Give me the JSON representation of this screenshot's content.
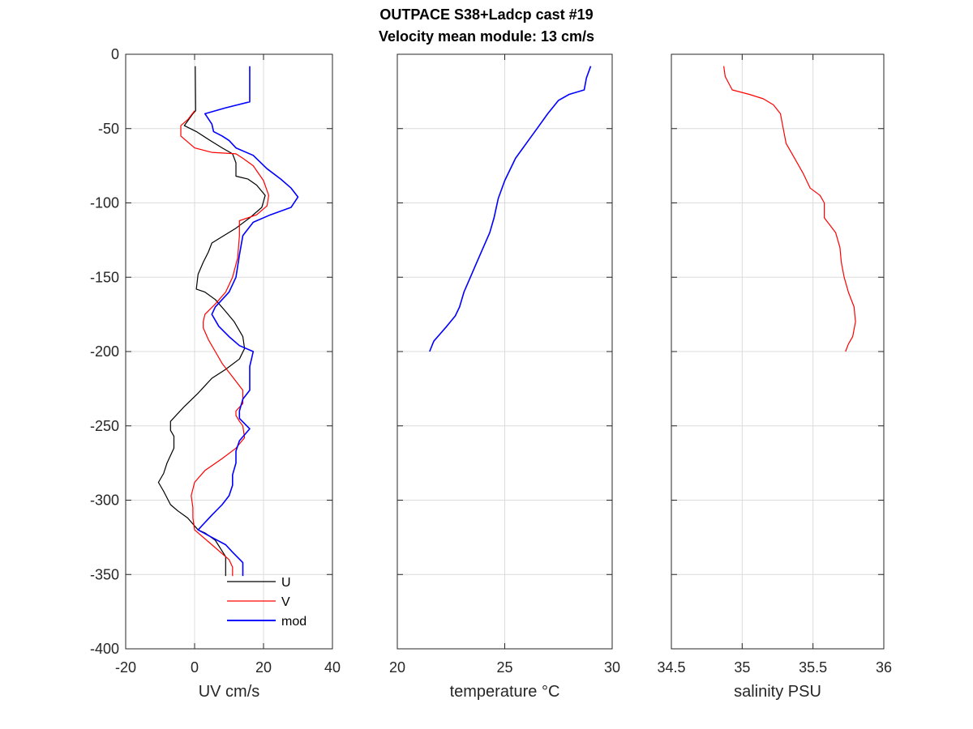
{
  "figure": {
    "title_line1": "OUTPACE S38+Ladcp cast #19",
    "title_line2": "Velocity mean module:  13 cm/s"
  },
  "chart_data": [
    {
      "type": "line",
      "xlabel": "UV cm/s",
      "ylabel": "",
      "xlim": [
        -20,
        40
      ],
      "ylim": [
        -400,
        0
      ],
      "xticks": [
        -20,
        0,
        20,
        40
      ],
      "yticks": [
        -400,
        -350,
        -300,
        -250,
        -200,
        -150,
        -100,
        -50,
        0
      ],
      "grid": true,
      "legend": "bottom-center",
      "series": [
        {
          "name": "U",
          "color": "#000000",
          "points": [
            [
              0.2,
              -8
            ],
            [
              0.3,
              -38
            ],
            [
              -0.5,
              -40
            ],
            [
              -3,
              -48
            ],
            [
              0.5,
              -52
            ],
            [
              4.5,
              -58
            ],
            [
              8,
              -63
            ],
            [
              11,
              -67
            ],
            [
              12,
              -73
            ],
            [
              12,
              -82
            ],
            [
              15.5,
              -84
            ],
            [
              18,
              -88
            ],
            [
              20.5,
              -95
            ],
            [
              19.5,
              -103
            ],
            [
              16,
              -110
            ],
            [
              12,
              -117
            ],
            [
              8.5,
              -122
            ],
            [
              5,
              -127
            ],
            [
              4,
              -133
            ],
            [
              2.5,
              -140
            ],
            [
              1,
              -148
            ],
            [
              0.5,
              -158
            ],
            [
              3,
              -160
            ],
            [
              6,
              -165
            ],
            [
              9,
              -173
            ],
            [
              11.5,
              -180
            ],
            [
              14,
              -190
            ],
            [
              14.5,
              -198
            ],
            [
              13,
              -205
            ],
            [
              9,
              -212
            ],
            [
              5,
              -218
            ],
            [
              1,
              -228
            ],
            [
              -3,
              -237
            ],
            [
              -7,
              -247
            ],
            [
              -7,
              -253
            ],
            [
              -6,
              -257
            ],
            [
              -6,
              -265
            ],
            [
              -8,
              -275
            ],
            [
              -9,
              -282
            ],
            [
              -10.5,
              -288
            ],
            [
              -9,
              -294
            ],
            [
              -7,
              -303
            ],
            [
              -5,
              -307
            ],
            [
              -2,
              -312
            ],
            [
              1,
              -320
            ],
            [
              3,
              -322
            ],
            [
              6,
              -327
            ],
            [
              9,
              -338
            ],
            [
              9,
              -351
            ]
          ]
        },
        {
          "name": "V",
          "color": "#ff0000",
          "points": [
            [
              0,
              -38
            ],
            [
              -2,
              -44
            ],
            [
              -4,
              -48
            ],
            [
              -4,
              -55
            ],
            [
              0,
              -63
            ],
            [
              5,
              -66
            ],
            [
              12,
              -67
            ],
            [
              14,
              -70
            ],
            [
              17,
              -75
            ],
            [
              20,
              -85
            ],
            [
              21.5,
              -95
            ],
            [
              21,
              -102
            ],
            [
              18,
              -108
            ],
            [
              13,
              -112
            ],
            [
              13,
              -122
            ],
            [
              12.5,
              -137
            ],
            [
              11,
              -150
            ],
            [
              9,
              -160
            ],
            [
              6,
              -168
            ],
            [
              3,
              -175
            ],
            [
              2.5,
              -180
            ],
            [
              2.5,
              -184
            ],
            [
              4,
              -192
            ],
            [
              6,
              -200
            ],
            [
              8,
              -208
            ],
            [
              11,
              -217
            ],
            [
              14,
              -226
            ],
            [
              14,
              -235
            ],
            [
              12,
              -240
            ],
            [
              12,
              -243
            ],
            [
              13,
              -247
            ],
            [
              14,
              -250
            ],
            [
              14.5,
              -258
            ],
            [
              12,
              -265
            ],
            [
              8,
              -272
            ],
            [
              3,
              -280
            ],
            [
              0,
              -288
            ],
            [
              -1,
              -297
            ],
            [
              -0.5,
              -305
            ],
            [
              -0.5,
              -312
            ],
            [
              0,
              -320
            ],
            [
              5,
              -330
            ],
            [
              8,
              -336
            ],
            [
              10,
              -340
            ],
            [
              11,
              -345
            ],
            [
              11,
              -351
            ]
          ]
        },
        {
          "name": "mod",
          "color": "#0000ff",
          "points": [
            [
              16,
              -8
            ],
            [
              16,
              -32
            ],
            [
              9,
              -36
            ],
            [
              3,
              -40
            ],
            [
              5,
              -47
            ],
            [
              5.5,
              -52
            ],
            [
              8,
              -55
            ],
            [
              10,
              -58
            ],
            [
              12,
              -63
            ],
            [
              17,
              -68
            ],
            [
              21,
              -77
            ],
            [
              25,
              -84
            ],
            [
              28,
              -90
            ],
            [
              30,
              -96
            ],
            [
              28,
              -103
            ],
            [
              22,
              -108
            ],
            [
              17,
              -113
            ],
            [
              14,
              -122
            ],
            [
              13,
              -135
            ],
            [
              12,
              -150
            ],
            [
              10,
              -160
            ],
            [
              8,
              -165
            ],
            [
              6,
              -170
            ],
            [
              5,
              -175
            ],
            [
              7,
              -183
            ],
            [
              10,
              -190
            ],
            [
              13,
              -196
            ],
            [
              17,
              -200
            ],
            [
              16,
              -210
            ],
            [
              16,
              -217
            ],
            [
              16,
              -222
            ],
            [
              16,
              -226
            ],
            [
              14,
              -232
            ],
            [
              13,
              -240
            ],
            [
              13,
              -245
            ],
            [
              16,
              -252
            ],
            [
              13,
              -260
            ],
            [
              12,
              -267
            ],
            [
              12,
              -275
            ],
            [
              11,
              -283
            ],
            [
              11,
              -290
            ],
            [
              10,
              -297
            ],
            [
              8,
              -303
            ],
            [
              5,
              -310
            ],
            [
              3,
              -315
            ],
            [
              1,
              -320
            ],
            [
              5,
              -325
            ],
            [
              9,
              -330
            ],
            [
              11,
              -335
            ],
            [
              14,
              -342
            ],
            [
              14,
              -351
            ]
          ]
        }
      ]
    },
    {
      "type": "line",
      "xlabel": "temperature °C",
      "ylabel": "",
      "xlim": [
        20,
        30
      ],
      "ylim": [
        -400,
        0
      ],
      "xticks": [
        20,
        25,
        30
      ],
      "grid": true,
      "series": [
        {
          "color": "#0000ff",
          "points": [
            [
              29,
              -8
            ],
            [
              28.8,
              -16
            ],
            [
              28.7,
              -24
            ],
            [
              28,
              -27
            ],
            [
              27.5,
              -31
            ],
            [
              27,
              -40
            ],
            [
              26.5,
              -50
            ],
            [
              26.2,
              -56
            ],
            [
              25.5,
              -70
            ],
            [
              25.0,
              -85
            ],
            [
              24.7,
              -97
            ],
            [
              24.5,
              -110
            ],
            [
              24.3,
              -120
            ],
            [
              24,
              -130
            ],
            [
              23.7,
              -140
            ],
            [
              23.4,
              -150
            ],
            [
              23.1,
              -160
            ],
            [
              22.9,
              -170
            ],
            [
              22.7,
              -176
            ],
            [
              22.3,
              -183
            ],
            [
              22,
              -188
            ],
            [
              21.7,
              -193
            ],
            [
              21.5,
              -200
            ]
          ]
        }
      ]
    },
    {
      "type": "line",
      "xlabel": "salinity PSU",
      "ylabel": "",
      "xlim": [
        34.5,
        36
      ],
      "ylim": [
        -400,
        0
      ],
      "xticks": [
        34.5,
        35,
        35.5,
        36
      ],
      "grid": true,
      "series": [
        {
          "color": "#ff0000",
          "points": [
            [
              34.87,
              -8
            ],
            [
              34.88,
              -15
            ],
            [
              34.93,
              -24
            ],
            [
              35.05,
              -27
            ],
            [
              35.15,
              -30
            ],
            [
              35.22,
              -34
            ],
            [
              35.27,
              -40
            ],
            [
              35.29,
              -50
            ],
            [
              35.31,
              -60
            ],
            [
              35.37,
              -70
            ],
            [
              35.43,
              -80
            ],
            [
              35.48,
              -90
            ],
            [
              35.55,
              -95
            ],
            [
              35.58,
              -100
            ],
            [
              35.58,
              -110
            ],
            [
              35.62,
              -115
            ],
            [
              35.66,
              -120
            ],
            [
              35.69,
              -130
            ],
            [
              35.7,
              -140
            ],
            [
              35.72,
              -150
            ],
            [
              35.75,
              -160
            ],
            [
              35.79,
              -170
            ],
            [
              35.8,
              -180
            ],
            [
              35.78,
              -190
            ],
            [
              35.75,
              -195
            ],
            [
              35.73,
              -200
            ]
          ]
        }
      ]
    }
  ]
}
